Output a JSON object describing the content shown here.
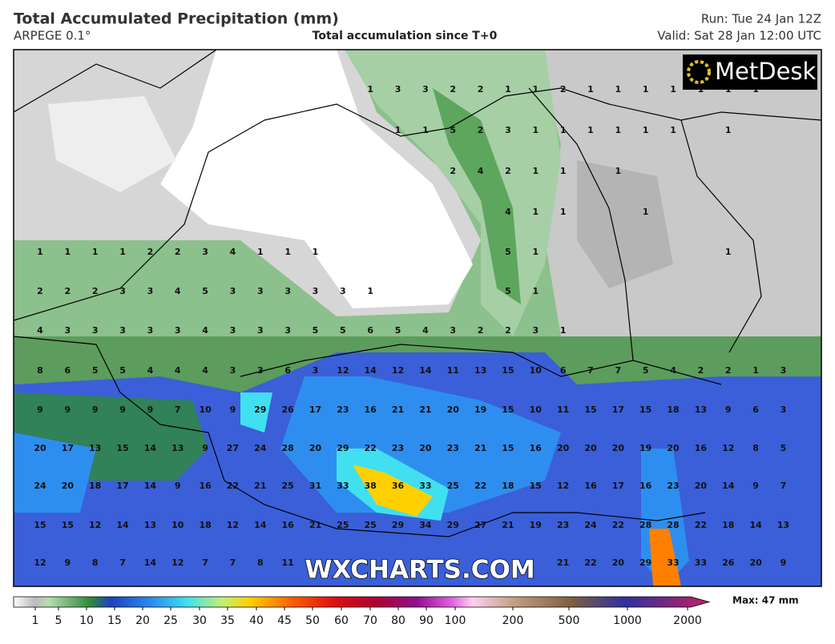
{
  "header": {
    "title": "Total Accumulated Precipitation (mm)",
    "model": "ARPEGE 0.1°",
    "subtitle": "Total accumulation since T+0",
    "run": "Run: Tue 24 Jan 12Z",
    "valid": "Valid: Sat 28 Jan 12:00 UTC"
  },
  "logo": "MetDesk",
  "watermark": "WXCHARTS.COM",
  "map": {
    "grid": [
      [
        null,
        null,
        null,
        null,
        null,
        null,
        null,
        null,
        null,
        null,
        null,
        null,
        1,
        3,
        3,
        2,
        2,
        1,
        1,
        2,
        1,
        1,
        1,
        1,
        1,
        1,
        1,
        null
      ],
      [
        null,
        null,
        null,
        null,
        null,
        null,
        null,
        null,
        null,
        null,
        null,
        null,
        null,
        1,
        1,
        5,
        2,
        3,
        1,
        1,
        1,
        1,
        1,
        1,
        null,
        1,
        null,
        null
      ],
      [
        null,
        null,
        null,
        null,
        null,
        null,
        null,
        null,
        null,
        null,
        null,
        null,
        null,
        null,
        null,
        2,
        4,
        2,
        1,
        1,
        null,
        1,
        null,
        null,
        null,
        null,
        null,
        null
      ],
      [
        null,
        null,
        null,
        null,
        null,
        null,
        null,
        null,
        null,
        null,
        null,
        null,
        null,
        null,
        null,
        null,
        null,
        4,
        1,
        1,
        null,
        null,
        1,
        null,
        null,
        null,
        null,
        null
      ],
      [
        1,
        1,
        1,
        1,
        2,
        2,
        3,
        4,
        1,
        1,
        1,
        null,
        null,
        null,
        null,
        null,
        null,
        5,
        1,
        null,
        null,
        null,
        null,
        null,
        null,
        1,
        null,
        null
      ],
      [
        2,
        2,
        2,
        3,
        3,
        4,
        5,
        3,
        3,
        3,
        3,
        3,
        1,
        null,
        null,
        null,
        null,
        5,
        1,
        null,
        null,
        null,
        null,
        null,
        null,
        null,
        null,
        null
      ],
      [
        4,
        3,
        3,
        3,
        3,
        3,
        4,
        3,
        3,
        3,
        5,
        5,
        6,
        5,
        4,
        3,
        2,
        2,
        3,
        1,
        null,
        null,
        null,
        null,
        null,
        null,
        null,
        null
      ],
      [
        8,
        6,
        5,
        5,
        4,
        4,
        4,
        3,
        3,
        6,
        3,
        12,
        14,
        12,
        14,
        11,
        13,
        15,
        10,
        6,
        7,
        7,
        5,
        4,
        2,
        2,
        1,
        3
      ],
      [
        9,
        9,
        9,
        9,
        9,
        7,
        10,
        9,
        29,
        26,
        17,
        23,
        16,
        21,
        21,
        20,
        19,
        15,
        10,
        11,
        15,
        17,
        15,
        18,
        13,
        9,
        6,
        3
      ],
      [
        20,
        17,
        13,
        15,
        14,
        13,
        9,
        27,
        24,
        28,
        20,
        29,
        22,
        23,
        20,
        23,
        21,
        15,
        16,
        20,
        20,
        20,
        19,
        20,
        16,
        12,
        8,
        5
      ],
      [
        24,
        20,
        18,
        17,
        14,
        9,
        16,
        22,
        21,
        25,
        31,
        33,
        38,
        36,
        33,
        25,
        22,
        18,
        15,
        12,
        16,
        17,
        16,
        23,
        20,
        14,
        9,
        7
      ],
      [
        15,
        15,
        12,
        14,
        13,
        10,
        18,
        12,
        14,
        16,
        21,
        25,
        25,
        29,
        34,
        29,
        27,
        21,
        19,
        23,
        24,
        22,
        28,
        28,
        22,
        18,
        14,
        13
      ],
      [
        12,
        9,
        8,
        7,
        14,
        12,
        7,
        7,
        8,
        11,
        null,
        null,
        null,
        null,
        null,
        null,
        null,
        null,
        null,
        21,
        22,
        20,
        29,
        33,
        33,
        26,
        20,
        9
      ]
    ]
  },
  "colorbar": {
    "ticks": [
      1,
      5,
      10,
      15,
      20,
      25,
      30,
      35,
      40,
      45,
      50,
      60,
      70,
      80,
      90,
      100,
      200,
      500,
      1000,
      2000
    ],
    "max_label": "Max: 47 mm"
  }
}
